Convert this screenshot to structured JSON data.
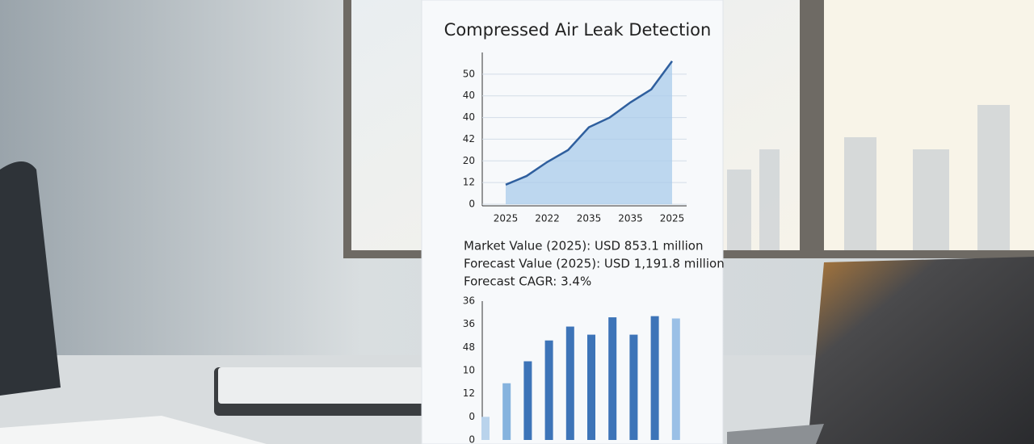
{
  "title": "Compressed Air Leak Detection",
  "stats": [
    "Market Value (2025): USD 853.1 million",
    "Forecast Value (2025): USD 1,191.8 million",
    "Forecast CAGR: 3.4%"
  ],
  "chart_data": [
    {
      "type": "line",
      "color": "#2f5f9e",
      "fill": "#a9cbeb",
      "grid": true,
      "categories": [
        "2025",
        null,
        "2022",
        null,
        "2035",
        null,
        "2035",
        null,
        "2025"
      ],
      "values": [
        0.9,
        1.3,
        1.95,
        2.5,
        3.55,
        4.0,
        4.7,
        5.3,
        6.6
      ],
      "ylim": [
        0,
        7
      ],
      "yticks": [
        {
          "value": 0,
          "label": "0"
        },
        {
          "value": 1,
          "label": "12"
        },
        {
          "value": 2,
          "label": "20"
        },
        {
          "value": 3,
          "label": "42"
        },
        {
          "value": 4,
          "label": "40"
        },
        {
          "value": 5,
          "label": "40"
        },
        {
          "value": 6,
          "label": "50"
        }
      ]
    },
    {
      "type": "bar",
      "grid": false,
      "categories": [
        null,
        null,
        null,
        null,
        null,
        null,
        null,
        null,
        null,
        null
      ],
      "values": [
        1.0,
        2.45,
        3.4,
        4.3,
        4.9,
        4.55,
        5.3,
        4.55,
        5.35,
        5.25
      ],
      "colors": [
        "#b9d3ec",
        "#86b3de",
        "#3d74b8",
        "#3d74b8",
        "#3d74b8",
        "#3d74b8",
        "#3d74b8",
        "#3d74b8",
        "#3d74b8",
        "#9ac0e6"
      ],
      "ylim": [
        0,
        6
      ],
      "yticks": [
        {
          "value": 0,
          "label": "0"
        },
        {
          "value": 1,
          "label": "0"
        },
        {
          "value": 2,
          "label": "12"
        },
        {
          "value": 3,
          "label": "10"
        },
        {
          "value": 4,
          "label": "48"
        },
        {
          "value": 5,
          "label": "36"
        },
        {
          "value": 6,
          "label": "36"
        }
      ]
    }
  ]
}
